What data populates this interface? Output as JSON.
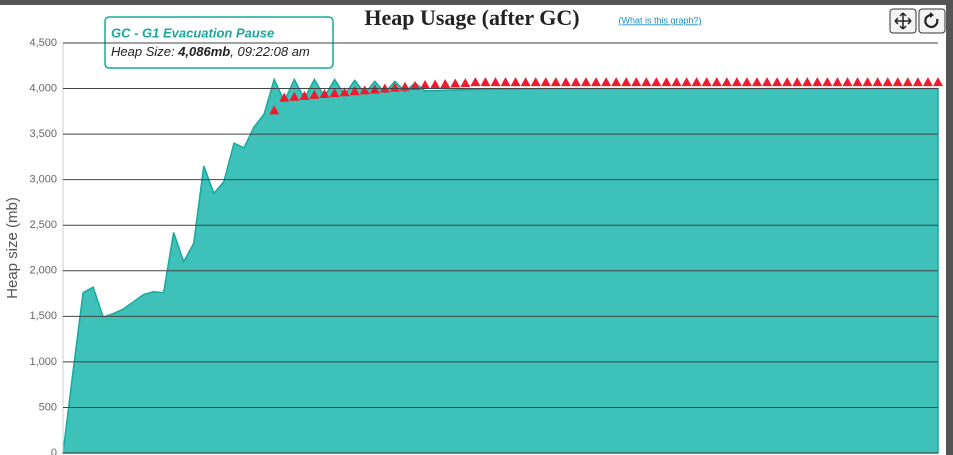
{
  "chart_data": {
    "type": "area",
    "title": "Heap Usage (after GC)",
    "link": "(What is this graph?)",
    "ylabel": "Heap size (mb)",
    "ylim": [
      0,
      4500
    ],
    "yticks": [
      0,
      500,
      {
        "value": 1000,
        "label": "1,000"
      },
      {
        "value": 1500,
        "label": "1,500"
      },
      {
        "value": 2000,
        "label": "2,000"
      },
      {
        "value": 2500,
        "label": "2,500"
      },
      {
        "value": 3000,
        "label": "3,000"
      },
      {
        "value": 3500,
        "label": "3,500"
      },
      {
        "value": 4000,
        "label": "4,000"
      },
      {
        "value": 4500,
        "label": "4,500"
      }
    ],
    "grid": true,
    "series": [
      {
        "color": "#3dc1b8",
        "values": [
          0,
          900,
          1760,
          1820,
          1490,
          1530,
          1580,
          1660,
          1740,
          1770,
          1760,
          2420,
          2100,
          2300,
          3150,
          2850,
          2980,
          3400,
          3350,
          3580,
          3720,
          4100,
          3860,
          4100,
          3890,
          4100,
          3910,
          4100,
          3930,
          4090,
          3945,
          4080,
          3955,
          4080,
          3965,
          4060,
          3975,
          3978,
          3982,
          3985,
          3988,
          3990,
          3992,
          3994,
          3995,
          3996,
          3997,
          3998,
          3999,
          4000,
          4000,
          4000,
          4000,
          4000,
          4000,
          4000,
          4000,
          4000,
          4000,
          4000,
          4000,
          4000,
          4000,
          4000,
          4000,
          4000,
          4000,
          4000,
          4000,
          4000,
          4000,
          4000,
          4000,
          4000,
          4000,
          4000,
          4000,
          4000,
          4000,
          4000,
          4000,
          4000,
          4000,
          4000,
          4000,
          4000,
          4000,
          4000
        ]
      },
      {
        "color": "#ee1c2e",
        "marker": "triangle",
        "values": [
          null,
          null,
          null,
          null,
          null,
          null,
          null,
          null,
          null,
          null,
          null,
          null,
          null,
          null,
          null,
          null,
          null,
          null,
          null,
          null,
          null,
          3760,
          3900,
          3910,
          3920,
          3930,
          3940,
          3950,
          3960,
          3970,
          3980,
          3990,
          4000,
          4010,
          4020,
          4030,
          4040,
          4045,
          4050,
          4055,
          4060,
          4070,
          4070,
          4070,
          4070,
          4070,
          4070,
          4070,
          4070,
          4070,
          4070,
          4070,
          4070,
          4070,
          4070,
          4070,
          4070,
          4070,
          4070,
          4070,
          4070,
          4070,
          4070,
          4070,
          4070,
          4070,
          4070,
          4070,
          4070,
          4070,
          4070,
          4070,
          4070,
          4070,
          4070,
          4070,
          4070,
          4070,
          4070,
          4070,
          4070,
          4070,
          4070,
          4070,
          4070,
          4070,
          4070,
          4070
        ]
      }
    ],
    "tooltip": {
      "title": "GC - G1 Evacuation Pause",
      "label": "Heap Size: ",
      "value": "4,086mb",
      "time": ", 09:22:08 am"
    }
  }
}
